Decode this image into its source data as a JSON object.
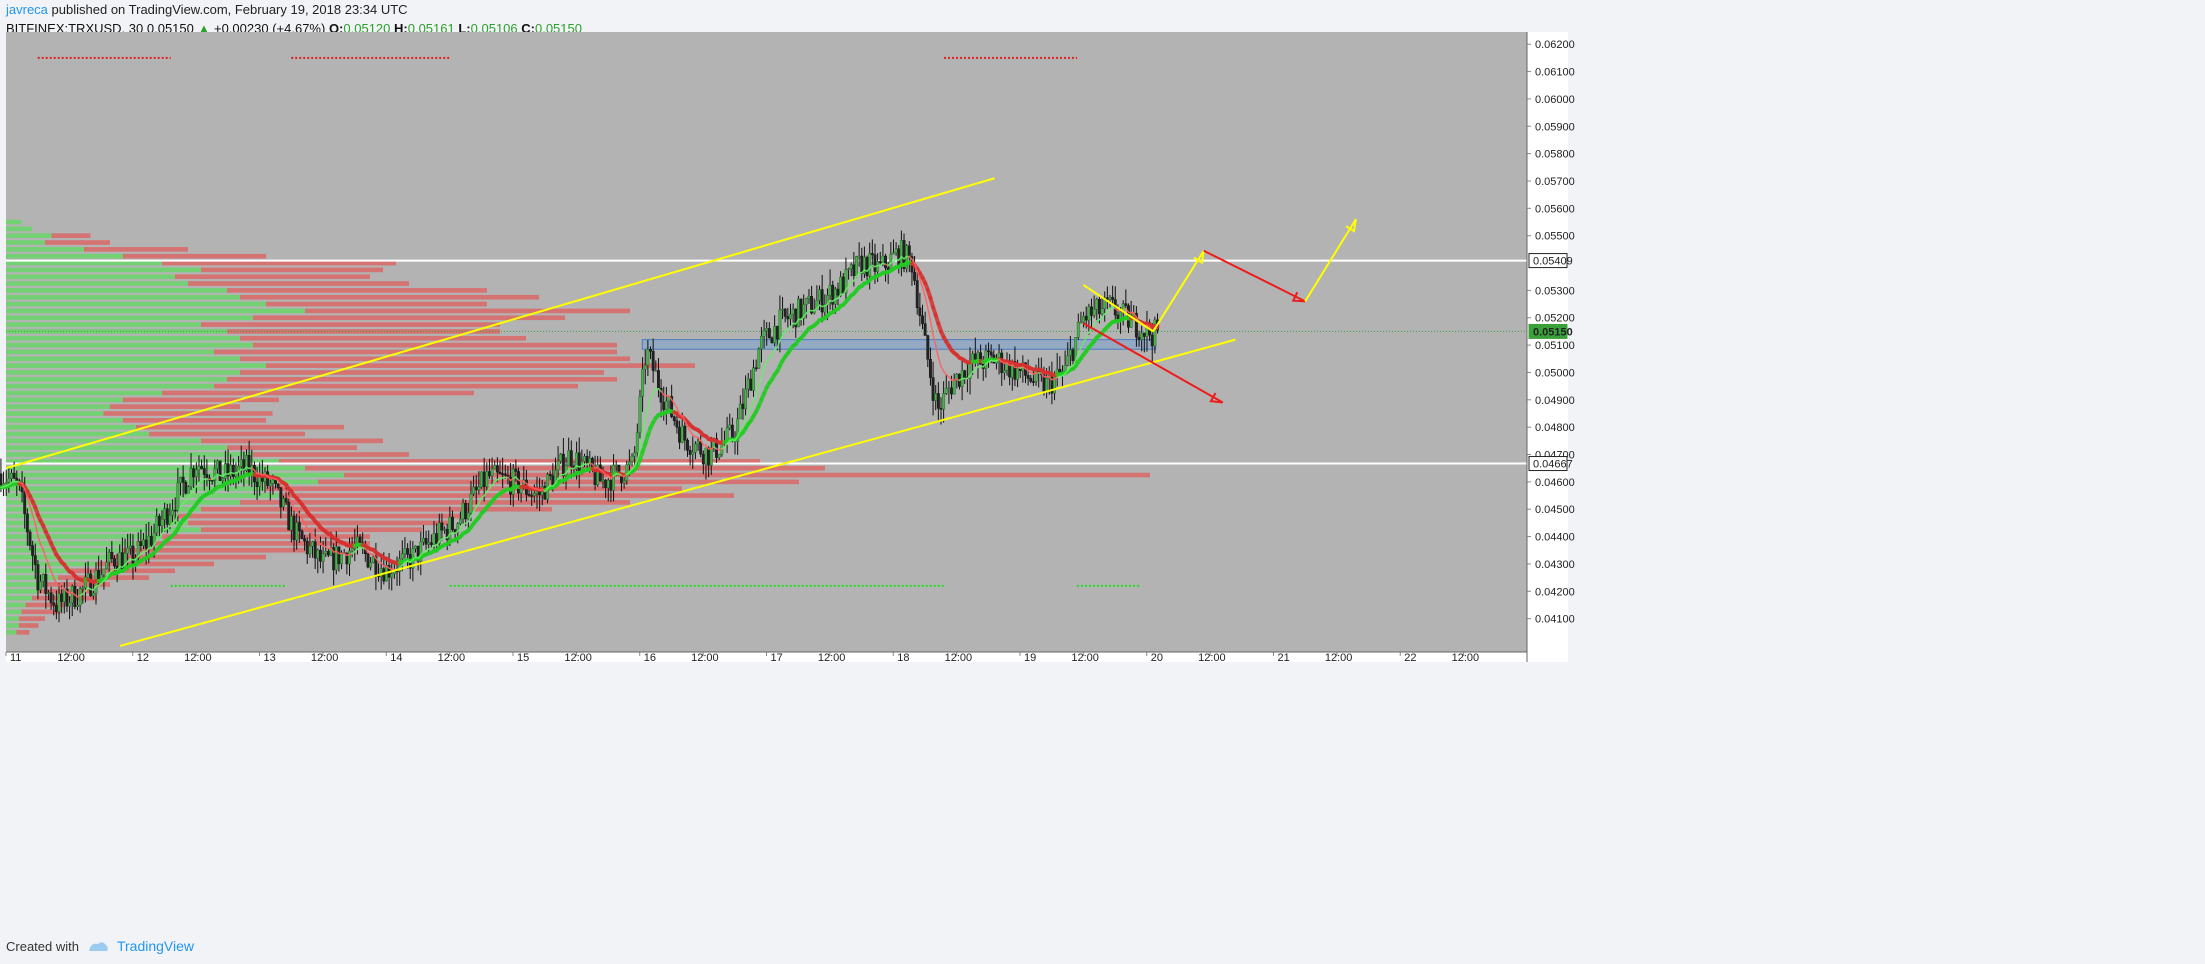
{
  "header": {
    "author": "javreca",
    "published": "published on TradingView.com, February 19, 2018 23:34 UTC"
  },
  "symbol_line": {
    "symbol": "BITFINEX:TRXUSD, 30",
    "change": "+0.00230 (+4.67%)",
    "open_label": "O:",
    "open": "0.05120",
    "high_label": "H:",
    "high": "0.05161",
    "low_label": "L:",
    "low": "0.05106",
    "close_label": "C:",
    "close": "0.05150"
  },
  "footer": {
    "created_with": "Created with",
    "brand": "TradingView"
  },
  "colors": {
    "plot_bg": "#b3b3b3",
    "volume_profile_up": "#6bd36b",
    "volume_profile_down": "#d86a6a",
    "trendline": "#ffff00",
    "arrow_bear": "#ee1c1c",
    "level_line": "#ffffff",
    "ema_green": "#22dd22",
    "ema_red": "#ee2222",
    "zone": "#6f9fd8"
  },
  "chart_data": {
    "type": "candlestick",
    "y_axis": {
      "range": [
        0.04,
        0.0623
      ],
      "ticks": [
        "0.06200",
        "0.06100",
        "0.06000",
        "0.05900",
        "0.05800",
        "0.05700",
        "0.05600",
        "0.05500",
        "0.05300",
        "0.05200",
        "0.05100",
        "0.05000",
        "0.04900",
        "0.04800",
        "0.04700",
        "0.04600",
        "0.04500",
        "0.04400",
        "0.04300",
        "0.04200",
        "0.04100"
      ],
      "markers": [
        {
          "label": "0.05409",
          "value": 0.05409,
          "style": "white"
        },
        {
          "label": "0.05150",
          "value": 0.0515,
          "style": "green"
        },
        {
          "label": "0.04667",
          "value": 0.04667,
          "style": "white"
        }
      ]
    },
    "x_axis": {
      "range": [
        11.0,
        23.0
      ],
      "ticks": [
        {
          "label": "11",
          "t": 11.0
        },
        {
          "label": "12:00",
          "t": 11.5
        },
        {
          "label": "12",
          "t": 12.0
        },
        {
          "label": "12:00",
          "t": 12.5
        },
        {
          "label": "13",
          "t": 13.0
        },
        {
          "label": "12:00",
          "t": 13.5
        },
        {
          "label": "14",
          "t": 14.0
        },
        {
          "label": "12:00",
          "t": 14.5
        },
        {
          "label": "15",
          "t": 15.0
        },
        {
          "label": "12:00",
          "t": 15.5
        },
        {
          "label": "16",
          "t": 16.0
        },
        {
          "label": "12:00",
          "t": 16.5
        },
        {
          "label": "17",
          "t": 17.0
        },
        {
          "label": "12:00",
          "t": 17.5
        },
        {
          "label": "18",
          "t": 18.0
        },
        {
          "label": "12:00",
          "t": 18.5
        },
        {
          "label": "19",
          "t": 19.0
        },
        {
          "label": "12:00",
          "t": 19.5
        },
        {
          "label": "20",
          "t": 20.0
        },
        {
          "label": "12:00",
          "t": 20.5
        },
        {
          "label": "21",
          "t": 21.0
        },
        {
          "label": "12:00",
          "t": 21.5
        },
        {
          "label": "22",
          "t": 22.0
        },
        {
          "label": "12:00",
          "t": 22.5
        }
      ]
    },
    "price_path": [
      [
        10.96,
        0.0463
      ],
      [
        11.1,
        0.0458
      ],
      [
        11.25,
        0.0425
      ],
      [
        11.4,
        0.0415
      ],
      [
        11.6,
        0.042
      ],
      [
        11.85,
        0.0432
      ],
      [
        12.0,
        0.0432
      ],
      [
        12.15,
        0.044
      ],
      [
        12.35,
        0.0455
      ],
      [
        12.5,
        0.0467
      ],
      [
        12.7,
        0.0462
      ],
      [
        12.9,
        0.0465
      ],
      [
        13.1,
        0.0458
      ],
      [
        13.3,
        0.044
      ],
      [
        13.5,
        0.043
      ],
      [
        13.75,
        0.0436
      ],
      [
        14.0,
        0.0428
      ],
      [
        14.2,
        0.0432
      ],
      [
        14.4,
        0.044
      ],
      [
        14.55,
        0.0445
      ],
      [
        14.8,
        0.0462
      ],
      [
        15.0,
        0.046
      ],
      [
        15.2,
        0.0455
      ],
      [
        15.45,
        0.047
      ],
      [
        15.7,
        0.046
      ],
      [
        15.95,
        0.0466
      ],
      [
        16.05,
        0.0508
      ],
      [
        16.2,
        0.049
      ],
      [
        16.35,
        0.0476
      ],
      [
        16.55,
        0.047
      ],
      [
        16.75,
        0.0478
      ],
      [
        16.95,
        0.051
      ],
      [
        17.1,
        0.0518
      ],
      [
        17.25,
        0.0522
      ],
      [
        17.45,
        0.0527
      ],
      [
        17.6,
        0.0532
      ],
      [
        17.75,
        0.054
      ],
      [
        17.9,
        0.0538
      ],
      [
        18.05,
        0.0544
      ],
      [
        18.15,
        0.054
      ],
      [
        18.25,
        0.051
      ],
      [
        18.35,
        0.0486
      ],
      [
        18.45,
        0.0495
      ],
      [
        18.6,
        0.0503
      ],
      [
        18.8,
        0.0505
      ],
      [
        19.0,
        0.05
      ],
      [
        19.2,
        0.0495
      ],
      [
        19.35,
        0.05
      ],
      [
        19.5,
        0.052
      ],
      [
        19.7,
        0.0524
      ],
      [
        19.9,
        0.0518
      ],
      [
        20.05,
        0.0514
      ],
      [
        20.1,
        0.0515
      ]
    ],
    "candle_span": [
      10.96,
      20.1
    ],
    "volume_profile": [
      {
        "p": 0.0555,
        "up": 0.012,
        "down": 0.0
      },
      {
        "p": 0.05525,
        "up": 0.02,
        "down": 0.0
      },
      {
        "p": 0.055,
        "up": 0.035,
        "down": 0.03
      },
      {
        "p": 0.05475,
        "up": 0.03,
        "down": 0.05
      },
      {
        "p": 0.0545,
        "up": 0.06,
        "down": 0.08
      },
      {
        "p": 0.05425,
        "up": 0.09,
        "down": 0.11
      },
      {
        "p": 0.054,
        "up": 0.12,
        "down": 0.18
      },
      {
        "p": 0.05375,
        "up": 0.15,
        "down": 0.14
      },
      {
        "p": 0.0535,
        "up": 0.13,
        "down": 0.15
      },
      {
        "p": 0.05325,
        "up": 0.14,
        "down": 0.17
      },
      {
        "p": 0.053,
        "up": 0.17,
        "down": 0.2
      },
      {
        "p": 0.05275,
        "up": 0.18,
        "down": 0.23
      },
      {
        "p": 0.0525,
        "up": 0.2,
        "down": 0.17
      },
      {
        "p": 0.05225,
        "up": 0.23,
        "down": 0.25
      },
      {
        "p": 0.052,
        "up": 0.19,
        "down": 0.24
      },
      {
        "p": 0.05175,
        "up": 0.15,
        "down": 0.23
      },
      {
        "p": 0.0515,
        "up": 0.17,
        "down": 0.21
      },
      {
        "p": 0.05125,
        "up": 0.18,
        "down": 0.22
      },
      {
        "p": 0.051,
        "up": 0.19,
        "down": 0.28
      },
      {
        "p": 0.05075,
        "up": 0.16,
        "down": 0.31
      },
      {
        "p": 0.0505,
        "up": 0.18,
        "down": 0.3
      },
      {
        "p": 0.05025,
        "up": 0.2,
        "down": 0.33
      },
      {
        "p": 0.05,
        "up": 0.18,
        "down": 0.28
      },
      {
        "p": 0.04975,
        "up": 0.17,
        "down": 0.3
      },
      {
        "p": 0.0495,
        "up": 0.16,
        "down": 0.28
      },
      {
        "p": 0.04925,
        "up": 0.12,
        "down": 0.24
      },
      {
        "p": 0.049,
        "up": 0.09,
        "down": 0.12
      },
      {
        "p": 0.04875,
        "up": 0.08,
        "down": 0.1
      },
      {
        "p": 0.0485,
        "up": 0.075,
        "down": 0.13
      },
      {
        "p": 0.04825,
        "up": 0.09,
        "down": 0.11
      },
      {
        "p": 0.048,
        "up": 0.1,
        "down": 0.16
      },
      {
        "p": 0.04775,
        "up": 0.11,
        "down": 0.12
      },
      {
        "p": 0.0475,
        "up": 0.15,
        "down": 0.14
      },
      {
        "p": 0.04725,
        "up": 0.17,
        "down": 0.1
      },
      {
        "p": 0.047,
        "up": 0.19,
        "down": 0.12
      },
      {
        "p": 0.04675,
        "up": 0.21,
        "down": 0.37
      },
      {
        "p": 0.0465,
        "up": 0.23,
        "down": 0.4
      },
      {
        "p": 0.04625,
        "up": 0.26,
        "down": 0.62
      },
      {
        "p": 0.046,
        "up": 0.24,
        "down": 0.37
      },
      {
        "p": 0.04575,
        "up": 0.2,
        "down": 0.32
      },
      {
        "p": 0.0455,
        "up": 0.21,
        "down": 0.35
      },
      {
        "p": 0.04525,
        "up": 0.18,
        "down": 0.3
      },
      {
        "p": 0.045,
        "up": 0.15,
        "down": 0.27
      },
      {
        "p": 0.04475,
        "up": 0.13,
        "down": 0.22
      },
      {
        "p": 0.0445,
        "up": 0.14,
        "down": 0.2
      },
      {
        "p": 0.04425,
        "up": 0.15,
        "down": 0.17
      },
      {
        "p": 0.044,
        "up": 0.12,
        "down": 0.16
      },
      {
        "p": 0.04375,
        "up": 0.1,
        "down": 0.18
      },
      {
        "p": 0.0435,
        "up": 0.09,
        "down": 0.14
      },
      {
        "p": 0.04325,
        "up": 0.08,
        "down": 0.12
      },
      {
        "p": 0.043,
        "up": 0.07,
        "down": 0.09
      },
      {
        "p": 0.04275,
        "up": 0.05,
        "down": 0.08
      },
      {
        "p": 0.0425,
        "up": 0.04,
        "down": 0.07
      },
      {
        "p": 0.04225,
        "up": 0.03,
        "down": 0.05
      },
      {
        "p": 0.042,
        "up": 0.025,
        "down": 0.04
      },
      {
        "p": 0.04175,
        "up": 0.02,
        "down": 0.05
      },
      {
        "p": 0.0415,
        "up": 0.015,
        "down": 0.03
      },
      {
        "p": 0.04125,
        "up": 0.012,
        "down": 0.03
      },
      {
        "p": 0.041,
        "up": 0.01,
        "down": 0.02
      },
      {
        "p": 0.04075,
        "up": 0.01,
        "down": 0.015
      },
      {
        "p": 0.0405,
        "up": 0.008,
        "down": 0.01
      }
    ],
    "level_lines": [
      0.05409,
      0.04667
    ],
    "last_price_line": 0.0515,
    "support_zone": {
      "t1": 16.02,
      "t2": 20.07,
      "p_low": 0.05085,
      "p_high": 0.0512
    },
    "trendlines": [
      {
        "from": [
          11.0,
          0.0465
        ],
        "to": [
          18.8,
          0.0571
        ]
      },
      {
        "from": [
          11.9,
          0.04
        ],
        "to": [
          20.7,
          0.0512
        ]
      },
      {
        "from": [
          19.5,
          0.0532
        ],
        "to": [
          20.05,
          0.0515
        ]
      }
    ],
    "arrows": [
      {
        "color": "yellow",
        "points": [
          [
            20.05,
            0.0515
          ],
          [
            20.45,
            0.05445
          ]
        ]
      },
      {
        "color": "red",
        "points": [
          [
            20.45,
            0.05445
          ],
          [
            21.25,
            0.0526
          ]
        ]
      },
      {
        "color": "yellow",
        "points": [
          [
            21.25,
            0.0526
          ],
          [
            21.65,
            0.0556
          ]
        ]
      },
      {
        "color": "red",
        "points": [
          [
            19.5,
            0.0518
          ],
          [
            20.6,
            0.0489
          ]
        ]
      }
    ],
    "pivot_dashes": [
      {
        "color": "red",
        "t1": 11.25,
        "t2": 12.3,
        "p": 0.0615
      },
      {
        "color": "red",
        "t1": 13.25,
        "t2": 14.5,
        "p": 0.0615
      },
      {
        "color": "red",
        "t1": 18.4,
        "t2": 19.45,
        "p": 0.0615
      },
      {
        "color": "green",
        "t1": 12.3,
        "t2": 13.2,
        "p": 0.0422
      },
      {
        "color": "green",
        "t1": 14.5,
        "t2": 18.4,
        "p": 0.0422
      },
      {
        "color": "green",
        "t1": 19.45,
        "t2": 19.95,
        "p": 0.0422
      }
    ]
  }
}
